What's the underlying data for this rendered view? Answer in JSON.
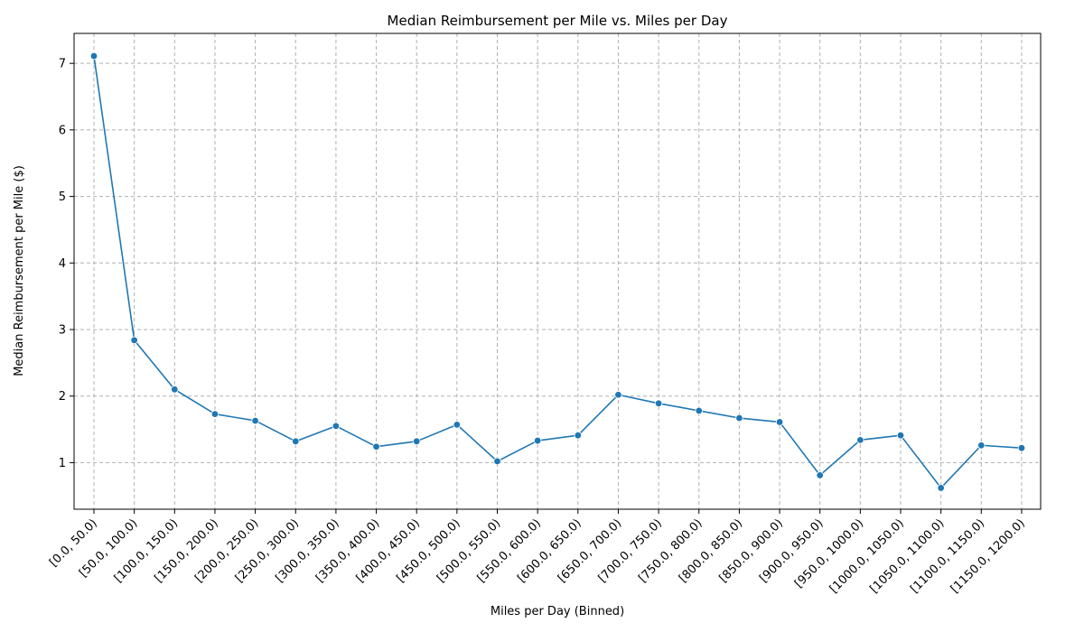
{
  "chart_data": {
    "type": "line",
    "title": "Median Reimbursement per Mile vs. Miles per Day",
    "xlabel": "Miles per Day (Binned)",
    "ylabel": "Median Reimbursement per Mile ($)",
    "ylim": [
      0.3,
      7.45
    ],
    "yticks": [
      1,
      2,
      3,
      4,
      5,
      6,
      7
    ],
    "grid": true,
    "color": "#1f77b4",
    "categories": [
      "[0.0, 50.0)",
      "[50.0, 100.0)",
      "[100.0, 150.0)",
      "[150.0, 200.0)",
      "[200.0, 250.0)",
      "[250.0, 300.0)",
      "[300.0, 350.0)",
      "[350.0, 400.0)",
      "[400.0, 450.0)",
      "[450.0, 500.0)",
      "[500.0, 550.0)",
      "[550.0, 600.0)",
      "[600.0, 650.0)",
      "[650.0, 700.0)",
      "[700.0, 750.0)",
      "[750.0, 800.0)",
      "[800.0, 850.0)",
      "[850.0, 900.0)",
      "[900.0, 950.0)",
      "[950.0, 1000.0)",
      "[1000.0, 1050.0)",
      "[1050.0, 1100.0)",
      "[1100.0, 1150.0)",
      "[1150.0, 1200.0)"
    ],
    "series": [
      {
        "values": [
          7.11,
          2.84,
          2.1,
          1.73,
          1.63,
          1.32,
          1.55,
          1.24,
          1.32,
          1.57,
          1.02,
          1.33,
          1.41,
          2.02,
          1.89,
          1.78,
          1.67,
          1.61,
          0.81,
          1.34,
          1.41,
          0.62,
          1.26,
          1.22
        ]
      }
    ]
  }
}
